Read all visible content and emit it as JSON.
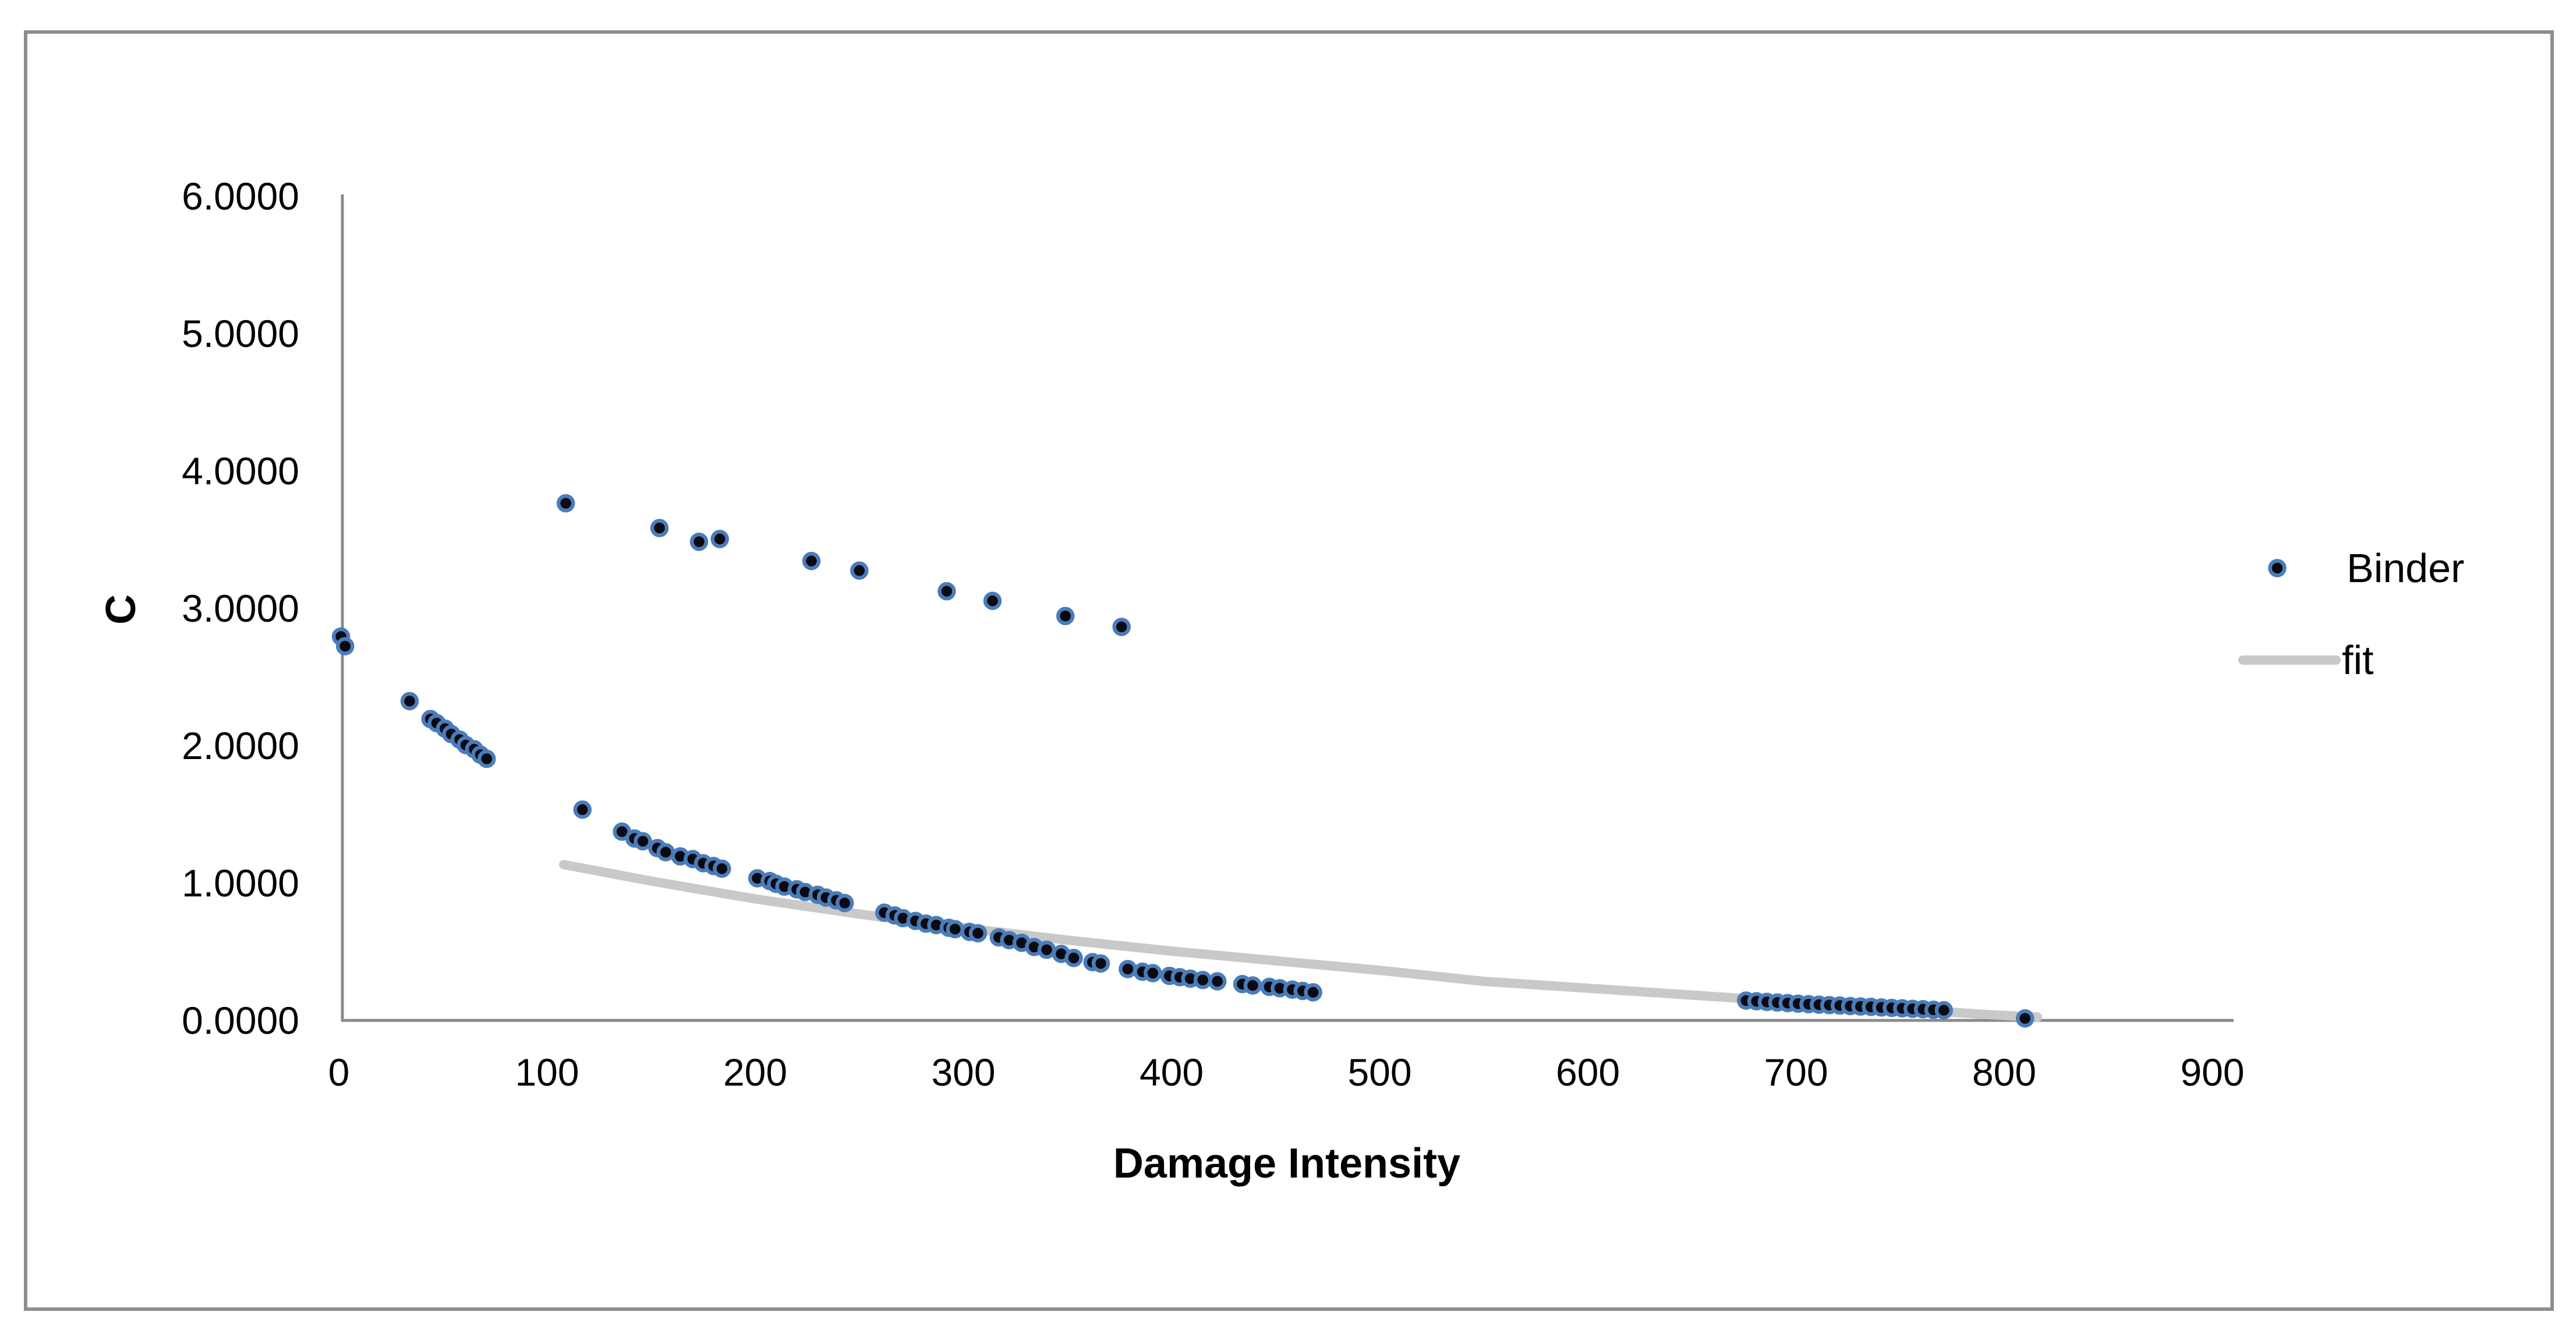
{
  "chart": {
    "legend": {
      "binder_label": "Binder",
      "fit_label": "fit"
    },
    "colors": {
      "marker_ring": "#4a7cba",
      "marker_core": "#0a0a10",
      "fit_line": "#c9c9c9",
      "axis_line": "#8a8a8a",
      "frame_border": "#8e8e8e",
      "text": "#000000"
    }
  },
  "chart_data": {
    "type": "scatter",
    "title": "",
    "xlabel": "Damage Intensity",
    "ylabel": "C",
    "xlim": [
      0,
      900
    ],
    "ylim": [
      0,
      6
    ],
    "grid": "off",
    "legend_position": "right",
    "x_ticks": [
      "0",
      "100",
      "200",
      "300",
      "400",
      "500",
      "600",
      "700",
      "800",
      "900"
    ],
    "y_ticks": [
      "0.0000",
      "1.0000",
      "2.0000",
      "3.0000",
      "4.0000",
      "5.0000",
      "6.0000"
    ],
    "series": [
      {
        "name": "Binder",
        "type": "scatter",
        "points": [
          [
            1,
            2.79
          ],
          [
            3,
            2.72
          ],
          [
            34,
            2.32
          ],
          [
            44,
            2.19
          ],
          [
            47,
            2.16
          ],
          [
            51,
            2.12
          ],
          [
            54,
            2.08
          ],
          [
            58,
            2.04
          ],
          [
            61,
            2.0
          ],
          [
            65,
            1.97
          ],
          [
            68,
            1.93
          ],
          [
            71,
            1.9
          ],
          [
            109,
            3.76
          ],
          [
            154,
            3.58
          ],
          [
            173,
            3.48
          ],
          [
            183,
            3.5
          ],
          [
            227,
            3.34
          ],
          [
            250,
            3.27
          ],
          [
            292,
            3.12
          ],
          [
            314,
            3.05
          ],
          [
            349,
            2.94
          ],
          [
            376,
            2.86
          ],
          [
            117,
            1.53
          ],
          [
            136,
            1.37
          ],
          [
            142,
            1.32
          ],
          [
            146,
            1.3
          ],
          [
            153,
            1.25
          ],
          [
            157,
            1.22
          ],
          [
            164,
            1.19
          ],
          [
            170,
            1.17
          ],
          [
            175,
            1.14
          ],
          [
            180,
            1.12
          ],
          [
            184,
            1.1
          ],
          [
            201,
            1.03
          ],
          [
            207,
            1.01
          ],
          [
            210,
            0.99
          ],
          [
            214,
            0.97
          ],
          [
            220,
            0.95
          ],
          [
            224,
            0.93
          ],
          [
            230,
            0.91
          ],
          [
            234,
            0.89
          ],
          [
            239,
            0.87
          ],
          [
            243,
            0.85
          ],
          [
            262,
            0.78
          ],
          [
            267,
            0.76
          ],
          [
            271,
            0.74
          ],
          [
            277,
            0.72
          ],
          [
            282,
            0.7
          ],
          [
            287,
            0.69
          ],
          [
            293,
            0.67
          ],
          [
            296,
            0.66
          ],
          [
            303,
            0.64
          ],
          [
            307,
            0.63
          ],
          [
            317,
            0.6
          ],
          [
            322,
            0.58
          ],
          [
            328,
            0.56
          ],
          [
            334,
            0.53
          ],
          [
            340,
            0.51
          ],
          [
            347,
            0.48
          ],
          [
            353,
            0.45
          ],
          [
            362,
            0.42
          ],
          [
            366,
            0.41
          ],
          [
            379,
            0.37
          ],
          [
            386,
            0.35
          ],
          [
            391,
            0.34
          ],
          [
            399,
            0.32
          ],
          [
            404,
            0.31
          ],
          [
            409,
            0.3
          ],
          [
            415,
            0.29
          ],
          [
            422,
            0.28
          ],
          [
            434,
            0.26
          ],
          [
            439,
            0.25
          ],
          [
            447,
            0.24
          ],
          [
            452,
            0.23
          ],
          [
            458,
            0.22
          ],
          [
            463,
            0.21
          ],
          [
            468,
            0.2
          ],
          [
            676,
            0.14
          ],
          [
            681,
            0.135
          ],
          [
            686,
            0.13
          ],
          [
            691,
            0.126
          ],
          [
            696,
            0.122
          ],
          [
            701,
            0.118
          ],
          [
            706,
            0.114
          ],
          [
            711,
            0.11
          ],
          [
            716,
            0.107
          ],
          [
            721,
            0.104
          ],
          [
            726,
            0.1
          ],
          [
            731,
            0.097
          ],
          [
            736,
            0.094
          ],
          [
            741,
            0.09
          ],
          [
            746,
            0.087
          ],
          [
            751,
            0.084
          ],
          [
            756,
            0.08
          ],
          [
            761,
            0.077
          ],
          [
            766,
            0.073
          ],
          [
            771,
            0.07
          ],
          [
            810,
            0.01
          ]
        ]
      },
      {
        "name": "fit",
        "type": "line",
        "points": [
          [
            108,
            1.13
          ],
          [
            150,
            1.01
          ],
          [
            200,
            0.88
          ],
          [
            250,
            0.77
          ],
          [
            300,
            0.67
          ],
          [
            350,
            0.58
          ],
          [
            400,
            0.5
          ],
          [
            450,
            0.43
          ],
          [
            500,
            0.36
          ],
          [
            550,
            0.28
          ],
          [
            600,
            0.23
          ],
          [
            650,
            0.18
          ],
          [
            700,
            0.13
          ],
          [
            750,
            0.08
          ],
          [
            790,
            0.04
          ],
          [
            816,
            0.02
          ]
        ]
      }
    ]
  }
}
